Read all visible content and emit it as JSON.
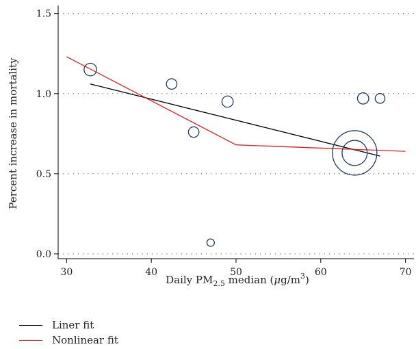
{
  "chart_data": {
    "type": "scatter",
    "xlabel_parts": [
      "Daily PM",
      "2.5",
      " median (",
      "μ",
      "g/m",
      "3",
      ")"
    ],
    "ylabel": "Percent increase in mortality",
    "xlim": [
      29,
      71
    ],
    "ylim": [
      -0.03,
      1.55
    ],
    "xticks": [
      30,
      40,
      50,
      60,
      70
    ],
    "yticks": [
      0.0,
      0.5,
      1.0,
      1.5
    ],
    "ytick_labels": [
      "0.0",
      "0.5",
      "1.0",
      "1.5"
    ],
    "grid": "horizontal dotted",
    "bubble_color": "#1f3a64",
    "points": [
      {
        "x": 32.8,
        "y": 1.15,
        "weight": 2.0
      },
      {
        "x": 42.4,
        "y": 1.06,
        "weight": 1.4
      },
      {
        "x": 45.0,
        "y": 0.76,
        "weight": 1.4
      },
      {
        "x": 47.0,
        "y": 0.07,
        "weight": 0.7
      },
      {
        "x": 49.0,
        "y": 0.95,
        "weight": 1.6
      },
      {
        "x": 64.0,
        "y": 0.63,
        "weight": 25.0
      },
      {
        "x": 64.0,
        "y": 0.63,
        "weight": 8.0
      },
      {
        "x": 65.0,
        "y": 0.97,
        "weight": 1.6
      },
      {
        "x": 67.0,
        "y": 0.97,
        "weight": 1.2
      }
    ],
    "series": [
      {
        "name": "Liner fit",
        "color": "#000000",
        "x": [
          32.8,
          67.0
        ],
        "y": [
          1.06,
          0.61
        ]
      },
      {
        "name": "Nonlinear fit",
        "color": "#e02020",
        "x": [
          30.0,
          50.0,
          70.0
        ],
        "y": [
          1.23,
          0.68,
          0.64
        ]
      }
    ]
  }
}
